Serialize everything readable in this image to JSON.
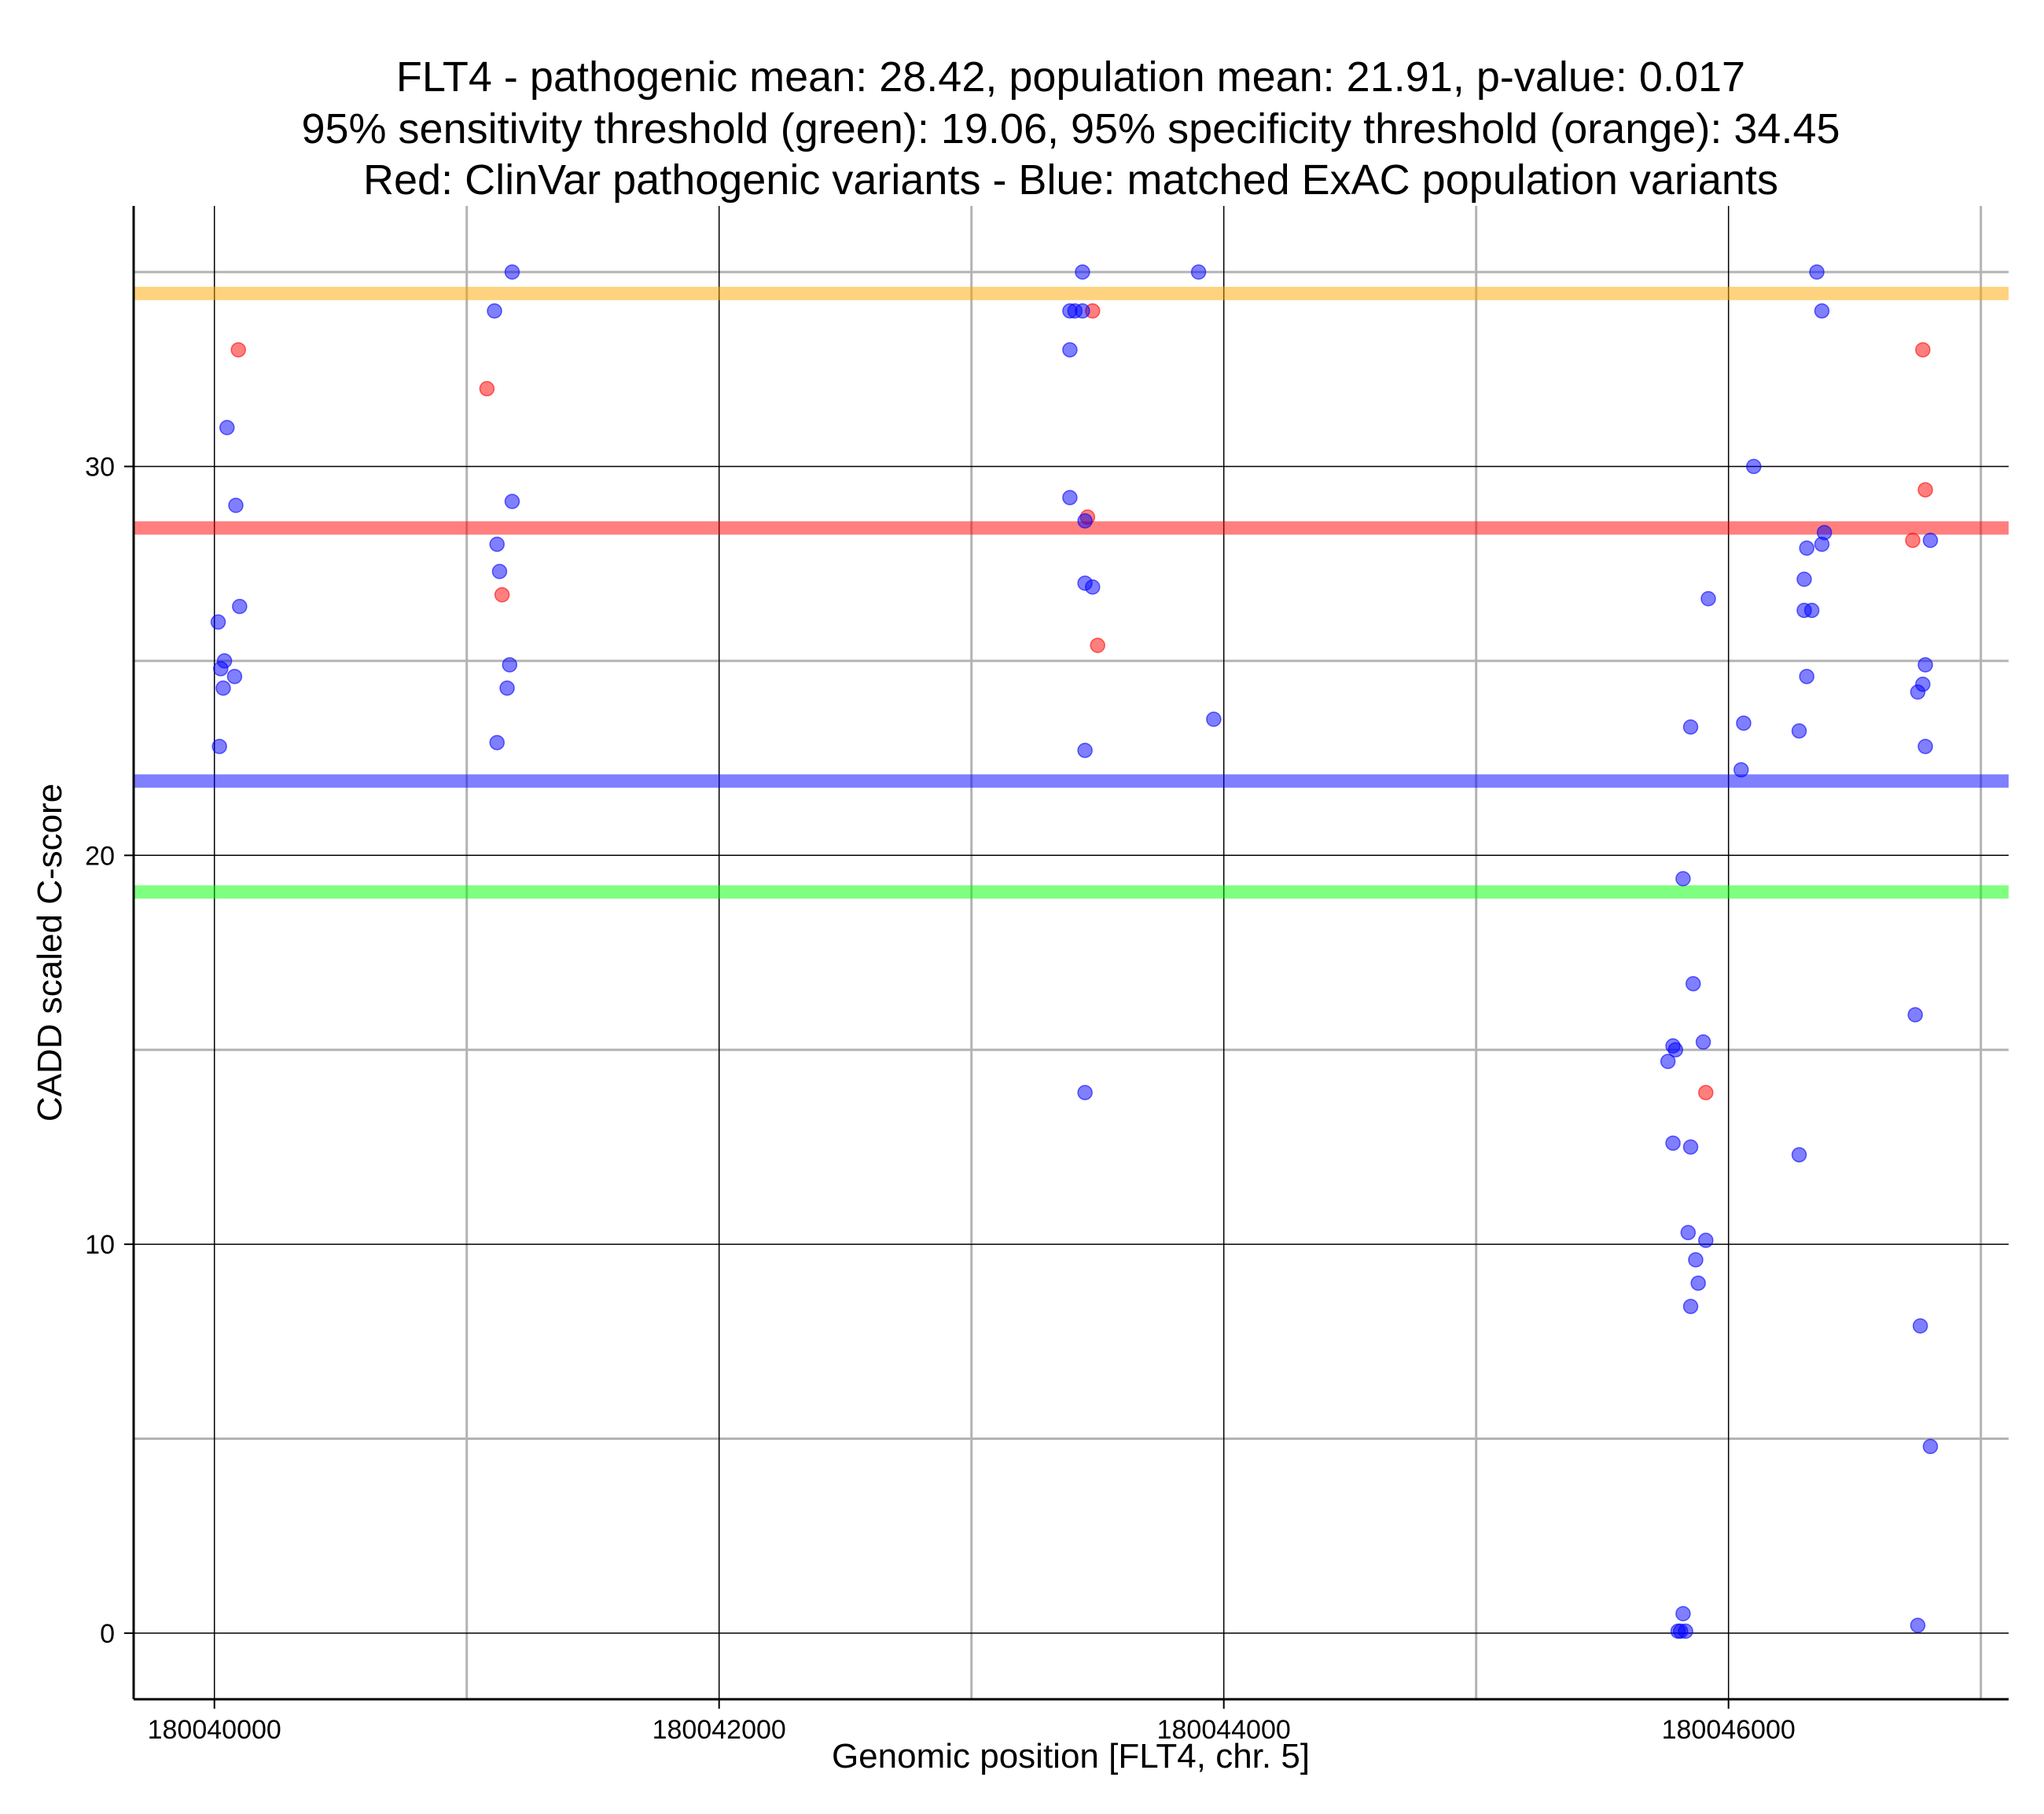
{
  "chart_data": {
    "type": "scatter",
    "title_lines": [
      "FLT4 - pathogenic mean: 28.42, population mean: 21.91, p-value: 0.017",
      "95% sensitivity threshold (green): 19.06, 95% specificity threshold (orange): 34.45",
      "Red: ClinVar pathogenic variants - Blue: matched ExAC population variants"
    ],
    "xlabel": "Genomic position [FLT4, chr. 5]",
    "ylabel": "CADD scaled C-score",
    "xlim": [
      180039680,
      180047110
    ],
    "ylim": [
      -1.7,
      36.7
    ],
    "x_ticks": [
      180040000,
      180042000,
      180044000,
      180046000
    ],
    "x_tick_labels": [
      "180040000",
      "180042000",
      "180044000",
      "180046000"
    ],
    "x_minor_grid": [
      180041000,
      180043000,
      180045000,
      180047000
    ],
    "y_ticks": [
      0,
      10,
      20,
      30
    ],
    "y_tick_labels": [
      "0",
      "10",
      "20",
      "30"
    ],
    "y_minor_grid": [
      5,
      15,
      25,
      35
    ],
    "grid": true,
    "legend": "none",
    "colors": {
      "pathogenic": "#ff0000",
      "population": "#0000ff",
      "sensitivity_line": "#00ff00",
      "specificity_line": "#ffa500"
    },
    "reference_lines": [
      {
        "name": "specificity threshold",
        "y": 34.45,
        "color": "#ffa500"
      },
      {
        "name": "pathogenic mean",
        "y": 28.42,
        "color": "#ff0000"
      },
      {
        "name": "population mean",
        "y": 21.91,
        "color": "#0000ff"
      },
      {
        "name": "sensitivity threshold",
        "y": 19.06,
        "color": "#00ff00"
      }
    ],
    "series": [
      {
        "key": "pathogenic",
        "points": [
          [
            180040095,
            33.0
          ],
          [
            180041080,
            32.0
          ],
          [
            180041140,
            26.7
          ],
          [
            180043480,
            34.0
          ],
          [
            180043460,
            28.7
          ],
          [
            180043500,
            25.4
          ],
          [
            180045910,
            13.9
          ],
          [
            180046730,
            28.1
          ],
          [
            180046770,
            33.0
          ],
          [
            180046780,
            29.4
          ]
        ]
      },
      {
        "key": "population",
        "points": [
          [
            180040050,
            31.0
          ],
          [
            180040085,
            29.0
          ],
          [
            180040100,
            26.4
          ],
          [
            180040015,
            26.0
          ],
          [
            180040040,
            25.0
          ],
          [
            180040025,
            24.8
          ],
          [
            180040080,
            24.6
          ],
          [
            180040035,
            24.3
          ],
          [
            180040020,
            22.8
          ],
          [
            180041180,
            35.0
          ],
          [
            180041110,
            34.0
          ],
          [
            180041180,
            29.1
          ],
          [
            180041120,
            28.0
          ],
          [
            180041130,
            27.3
          ],
          [
            180041170,
            24.9
          ],
          [
            180041160,
            24.3
          ],
          [
            180041120,
            22.9
          ],
          [
            180043440,
            35.0
          ],
          [
            180043390,
            34.0
          ],
          [
            180043410,
            34.0
          ],
          [
            180043440,
            34.0
          ],
          [
            180043390,
            33.0
          ],
          [
            180043390,
            29.2
          ],
          [
            180043450,
            28.6
          ],
          [
            180043450,
            27.0
          ],
          [
            180043480,
            26.9
          ],
          [
            180043450,
            22.7
          ],
          [
            180043450,
            13.9
          ],
          [
            180043900,
            35.0
          ],
          [
            180043960,
            23.5
          ],
          [
            180045920,
            26.6
          ],
          [
            180045850,
            23.3
          ],
          [
            180045820,
            19.4
          ],
          [
            180045860,
            16.7
          ],
          [
            180045780,
            15.1
          ],
          [
            180045790,
            15.0
          ],
          [
            180045900,
            15.2
          ],
          [
            180045760,
            14.7
          ],
          [
            180045780,
            12.6
          ],
          [
            180045850,
            12.5
          ],
          [
            180045840,
            10.3
          ],
          [
            180045910,
            10.1
          ],
          [
            180045870,
            9.6
          ],
          [
            180045880,
            9.0
          ],
          [
            180045850,
            8.4
          ],
          [
            180045820,
            0.5
          ],
          [
            180045800,
            0.05
          ],
          [
            180045810,
            0.05
          ],
          [
            180045830,
            0.05
          ],
          [
            180046100,
            30.0
          ],
          [
            180046060,
            23.4
          ],
          [
            180046050,
            22.2
          ],
          [
            180046350,
            35.0
          ],
          [
            180046370,
            34.0
          ],
          [
            180046380,
            28.3
          ],
          [
            180046370,
            28.0
          ],
          [
            180046310,
            27.9
          ],
          [
            180046300,
            27.1
          ],
          [
            180046300,
            26.3
          ],
          [
            180046330,
            26.3
          ],
          [
            180046310,
            24.6
          ],
          [
            180046280,
            23.2
          ],
          [
            180046280,
            12.3
          ],
          [
            180046800,
            28.1
          ],
          [
            180046780,
            24.9
          ],
          [
            180046770,
            24.4
          ],
          [
            180046750,
            24.2
          ],
          [
            180046780,
            22.8
          ],
          [
            180046740,
            15.9
          ],
          [
            180046760,
            7.9
          ],
          [
            180046800,
            4.8
          ],
          [
            180046750,
            0.2
          ]
        ]
      }
    ]
  }
}
